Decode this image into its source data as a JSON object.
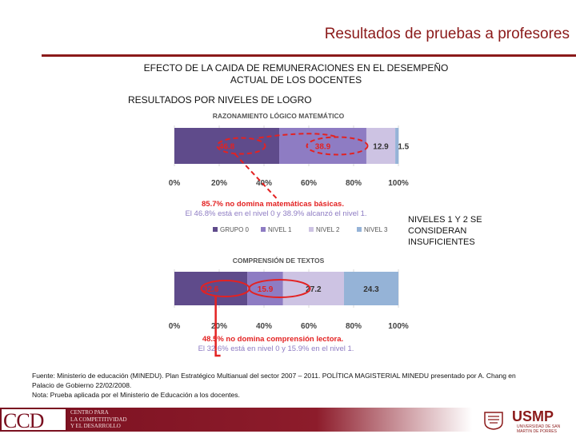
{
  "header": {
    "title": "Resultados de pruebas a profesores"
  },
  "subtitle": {
    "line1": "EFECTO DE LA CAIDA DE REMUNERACIONES  EN EL DESEMPEÑO",
    "line2": "ACTUAL DE LOS DOCENTES"
  },
  "results_label": "RESULTADOS POR NIVELES DE LOGRO",
  "legend": [
    "GRUPO 0",
    "NIVEL 1",
    "NIVEL 2",
    "NIVEL 3"
  ],
  "colors": {
    "grupo0": "#5f4b8b",
    "nivel1": "#8e7cc3",
    "nivel2": "#cdc3e3",
    "nivel3": "#95b3d7",
    "annotation_red": "#e32222",
    "brand": "#8b1a1a"
  },
  "chart_data": [
    {
      "type": "bar",
      "orientation": "horizontal-stacked",
      "title": "RAZONAMIENTO LÓGICO MATEMÁTICO",
      "series": [
        {
          "name": "GRUPO 0",
          "values": [
            46.8
          ]
        },
        {
          "name": "NIVEL 1",
          "values": [
            38.9
          ]
        },
        {
          "name": "NIVEL 2",
          "values": [
            12.9
          ]
        },
        {
          "name": "NIVEL 3",
          "values": [
            1.5
          ]
        }
      ],
      "data_labels": [
        "46.8",
        "38.9",
        "12.9",
        "1.5"
      ],
      "xlim": [
        0,
        100
      ],
      "ticks": [
        "0%",
        "20%",
        "40%",
        "60%",
        "80%",
        "100%"
      ],
      "annotation": {
        "line1": "85.7% no domina matemáticas básicas.",
        "line2": "El 46.8% está en el nivel 0 y 38.9% alcanzó el nivel 1."
      }
    },
    {
      "type": "bar",
      "orientation": "horizontal-stacked",
      "title": "COMPRENSIÓN DE TEXTOS",
      "series": [
        {
          "name": "GRUPO 0",
          "values": [
            32.6
          ]
        },
        {
          "name": "NIVEL 1",
          "values": [
            15.9
          ]
        },
        {
          "name": "NIVEL 2",
          "values": [
            27.2
          ]
        },
        {
          "name": "NIVEL 3",
          "values": [
            24.3
          ]
        }
      ],
      "data_labels": [
        "32.6",
        "15.9",
        "27.2",
        "24.3"
      ],
      "xlim": [
        0,
        100
      ],
      "ticks": [
        "0%",
        "20%",
        "40%",
        "60%",
        "80%",
        "100%"
      ],
      "annotation": {
        "line1": "48.5% no domina comprensión lectora.",
        "line2": "El 32.6% está en nivel 0 y 15.9% en el nivel 1."
      }
    }
  ],
  "side_note": "NIVELES 1 Y 2 SE CONSIDERAN INSUFICIENTES",
  "footer": {
    "line1": "Fuente: Ministerio de educación (MINEDU). Plan Estratégico Multianual del sector 2007 – 2011. POLÍTICA MAGISTERIAL MINEDU presentado por A. Chang en",
    "line2": "Palacio de Gobierno 22/02/2008.",
    "line3": "Nota: Prueba aplicada por el Ministerio de Educación a los docentes."
  },
  "logos": {
    "ccd": "CCD",
    "ccd_tagline": [
      "CENTRO PARA",
      "LA COMPETITIVIDAD",
      "Y EL DESARROLLO"
    ],
    "usmp": "USMP",
    "usmp_sub": "UNIVERSIDAD DE SAN MARTIN DE PORRES"
  }
}
